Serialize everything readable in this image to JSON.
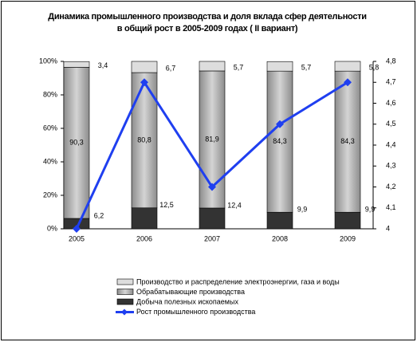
{
  "chart_data": {
    "type": "stacked-bar-line",
    "title": "Динамика промышленного производства и доля вклада сфер деятельности в общий рост в 2005-2009 годах ( II вариант)",
    "categories": [
      "2005",
      "2006",
      "2007",
      "2008",
      "2009"
    ],
    "series": [
      {
        "name": "Добыча полезных ископаемых",
        "color": "#333333",
        "values": [
          6.2,
          12.5,
          12.4,
          9.9,
          9.9
        ],
        "value_labels": [
          "6,2",
          "12,5",
          "12,4",
          "9,9",
          "9,9"
        ]
      },
      {
        "name": "Обрабатывающие производства",
        "color": "#a6a6a6",
        "values": [
          90.3,
          80.8,
          81.9,
          84.3,
          84.3
        ],
        "value_labels": [
          "90,3",
          "80,8",
          "81,9",
          "84,3",
          "84,3"
        ]
      },
      {
        "name": "Производство и распределение электроэнергии, газа и воды",
        "color": "#dddddd",
        "values": [
          3.4,
          6.7,
          5.7,
          5.7,
          5.8
        ],
        "value_labels": [
          "3,4",
          "6,7",
          "5,7",
          "5,7",
          "5,8"
        ]
      },
      {
        "name": "Рост промышленного производства",
        "color": "#1f3ff0",
        "axis": "y2",
        "values": [
          4.0,
          4.7,
          4.2,
          4.5,
          4.7
        ]
      }
    ],
    "ylim": [
      0,
      100
    ],
    "yticks": [
      {
        "value": 0,
        "label": "0%"
      },
      {
        "value": 20,
        "label": "20%"
      },
      {
        "value": 40,
        "label": "40%"
      },
      {
        "value": 60,
        "label": "60%"
      },
      {
        "value": 80,
        "label": "80%"
      },
      {
        "value": 100,
        "label": "100%"
      }
    ],
    "y2lim": [
      4,
      4.8
    ],
    "y2ticks": [
      4,
      {
        "value": 4.1,
        "label": "4,1"
      },
      {
        "value": 4.2,
        "label": "4,2"
      },
      {
        "value": 4.3,
        "label": "4,3"
      },
      {
        "value": 4.4,
        "label": "4,4"
      },
      {
        "value": 4.5,
        "label": "4,5"
      },
      {
        "value": 4.6,
        "label": "4,6"
      },
      {
        "value": 4.7,
        "label": "4,7"
      },
      {
        "value": 4.8,
        "label": "4,8"
      }
    ]
  }
}
